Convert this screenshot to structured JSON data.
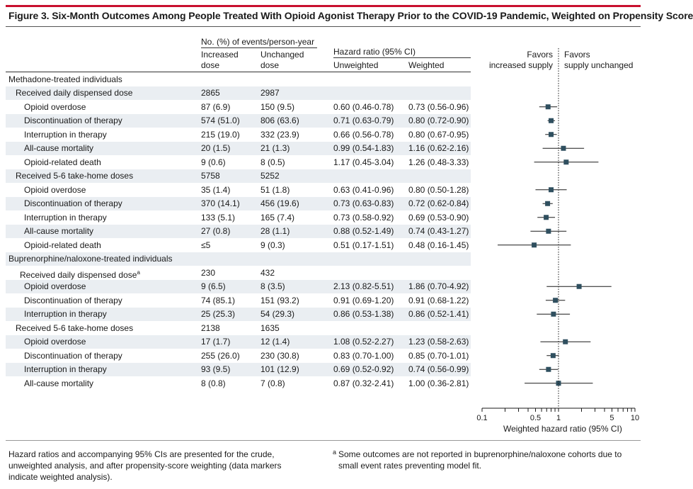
{
  "title": "Figure 3. Six-Month Outcomes Among People Treated With Opioid Agonist Therapy Prior to the COVID-19 Pandemic, Weighted on Propensity Score",
  "headers": {
    "events_group": "No. (%) of events/person-year",
    "increased_1": "Increased",
    "increased_2": "dose",
    "unchanged_1": "Unchanged",
    "unchanged_2": "dose",
    "hr_group": "Hazard ratio (95% CI)",
    "unweighted": "Unweighted",
    "weighted": "Weighted",
    "favors_left_1": "Favors",
    "favors_left_2": "increased supply",
    "favors_right_1": "Favors",
    "favors_right_2": "supply unchanged"
  },
  "chart_data": {
    "type": "forest",
    "xlabel": "Weighted hazard ratio (95% CI)",
    "xscale": "log",
    "xlim": [
      0.1,
      10
    ],
    "xticks": [
      "0.1",
      "0.5",
      "1",
      "5",
      "10"
    ],
    "reference_line": 1,
    "rows": [
      {
        "kind": "group",
        "label": "Methadone-treated individuals"
      },
      {
        "kind": "subgroup",
        "label": "Received daily dispensed dose",
        "inc": "2865",
        "unc": "2987"
      },
      {
        "kind": "outcome",
        "label": "Opioid overdose",
        "inc": "87 (6.9)",
        "unc": "150 (9.5)",
        "unw": "0.60 (0.46-0.78)",
        "w": "0.73 (0.56-0.96)",
        "hr": 0.73,
        "lo": 0.56,
        "hi": 0.96
      },
      {
        "kind": "outcome",
        "label": "Discontinuation of therapy",
        "inc": "574 (51.0)",
        "unc": "806 (63.6)",
        "unw": "0.71 (0.63-0.79)",
        "w": "0.80 (0.72-0.90)",
        "hr": 0.8,
        "lo": 0.72,
        "hi": 0.9
      },
      {
        "kind": "outcome",
        "label": "Interruption in therapy",
        "inc": "215 (19.0)",
        "unc": "332 (23.9)",
        "unw": "0.66 (0.56-0.78)",
        "w": "0.80 (0.67-0.95)",
        "hr": 0.8,
        "lo": 0.67,
        "hi": 0.95
      },
      {
        "kind": "outcome",
        "label": "All-cause mortality",
        "inc": "20 (1.5)",
        "unc": "21 (1.3)",
        "unw": "0.99 (0.54-1.83)",
        "w": "1.16 (0.62-2.16)",
        "hr": 1.16,
        "lo": 0.62,
        "hi": 2.16
      },
      {
        "kind": "outcome",
        "label": "Opioid-related death",
        "inc": "9 (0.6)",
        "unc": "8 (0.5)",
        "unw": "1.17 (0.45-3.04)",
        "w": "1.26 (0.48-3.33)",
        "hr": 1.26,
        "lo": 0.48,
        "hi": 3.33
      },
      {
        "kind": "subgroup",
        "label": "Received 5-6 take-home doses",
        "inc": "5758",
        "unc": "5252"
      },
      {
        "kind": "outcome",
        "label": "Opioid overdose",
        "inc": "35 (1.4)",
        "unc": "51 (1.8)",
        "unw": "0.63 (0.41-0.96)",
        "w": "0.80 (0.50-1.28)",
        "hr": 0.8,
        "lo": 0.5,
        "hi": 1.28
      },
      {
        "kind": "outcome",
        "label": "Discontinuation of therapy",
        "inc": "370 (14.1)",
        "unc": "456 (19.6)",
        "unw": "0.73 (0.63-0.83)",
        "w": "0.72 (0.62-0.84)",
        "hr": 0.72,
        "lo": 0.62,
        "hi": 0.84
      },
      {
        "kind": "outcome",
        "label": "Interruption in therapy",
        "inc": "133 (5.1)",
        "unc": "165 (7.4)",
        "unw": "0.73 (0.58-0.92)",
        "w": "0.69 (0.53-0.90)",
        "hr": 0.69,
        "lo": 0.53,
        "hi": 0.9
      },
      {
        "kind": "outcome",
        "label": "All-cause mortality",
        "inc": "27 (0.8)",
        "unc": "28 (1.1)",
        "unw": "0.88 (0.52-1.49)",
        "w": "0.74 (0.43-1.27)",
        "hr": 0.74,
        "lo": 0.43,
        "hi": 1.27
      },
      {
        "kind": "outcome",
        "label": "Opioid-related death",
        "inc": "≤5",
        "unc": "9 (0.3)",
        "unw": "0.51 (0.17-1.51)",
        "w": "0.48 (0.16-1.45)",
        "hr": 0.48,
        "lo": 0.16,
        "hi": 1.45
      },
      {
        "kind": "group",
        "label": "Buprenorphine/naloxone-treated individuals"
      },
      {
        "kind": "subgroup",
        "label": "Received daily dispensed dose",
        "sup": "a",
        "inc": "230",
        "unc": "432"
      },
      {
        "kind": "outcome",
        "label": "Opioid overdose",
        "inc": "9 (6.5)",
        "unc": "8 (3.5)",
        "unw": "2.13 (0.82-5.51)",
        "w": "1.86 (0.70-4.92)",
        "hr": 1.86,
        "lo": 0.7,
        "hi": 4.92
      },
      {
        "kind": "outcome",
        "label": "Discontinuation of therapy",
        "inc": "74 (85.1)",
        "unc": "151 (93.2)",
        "unw": "0.91 (0.69-1.20)",
        "w": "0.91 (0.68-1.22)",
        "hr": 0.91,
        "lo": 0.68,
        "hi": 1.22
      },
      {
        "kind": "outcome",
        "label": "Interruption in therapy",
        "inc": "25 (25.3)",
        "unc": "54 (29.3)",
        "unw": "0.86 (0.53-1.38)",
        "w": "0.86 (0.52-1.41)",
        "hr": 0.86,
        "lo": 0.52,
        "hi": 1.41
      },
      {
        "kind": "subgroup",
        "label": "Received 5-6 take-home doses",
        "inc": "2138",
        "unc": "1635"
      },
      {
        "kind": "outcome",
        "label": "Opioid overdose",
        "inc": "17 (1.7)",
        "unc": "12 (1.4)",
        "unw": "1.08 (0.52-2.27)",
        "w": "1.23 (0.58-2.63)",
        "hr": 1.23,
        "lo": 0.58,
        "hi": 2.63
      },
      {
        "kind": "outcome",
        "label": "Discontinuation of therapy",
        "inc": "255 (26.0)",
        "unc": "230 (30.8)",
        "unw": "0.83 (0.70-1.00)",
        "w": "0.85 (0.70-1.01)",
        "hr": 0.85,
        "lo": 0.7,
        "hi": 1.01
      },
      {
        "kind": "outcome",
        "label": "Interruption in therapy",
        "inc": "93 (9.5)",
        "unc": "101 (12.9)",
        "unw": "0.69 (0.52-0.92)",
        "w": "0.74 (0.56-0.99)",
        "hr": 0.74,
        "lo": 0.56,
        "hi": 0.99
      },
      {
        "kind": "outcome",
        "label": "All-cause mortality",
        "inc": "8 (0.8)",
        "unc": "7 (0.8)",
        "unw": "0.87 (0.32-2.41)",
        "w": "1.00 (0.36-2.81)",
        "hr": 1.0,
        "lo": 0.36,
        "hi": 2.81
      }
    ]
  },
  "footnotes": {
    "left": "Hazard ratios and accompanying 95% CIs are presented for the crude, unweighted analysis, and after propensity-score weighting (data markers indicate weighted analysis).",
    "right_mark": "a",
    "right": "Some outcomes are not reported in buprenorphine/naloxone cohorts due to small event rates preventing model fit."
  },
  "colors": {
    "accent_bar": "#c8102e",
    "band": "#eaeef2",
    "marker": "#2f4f5f"
  }
}
